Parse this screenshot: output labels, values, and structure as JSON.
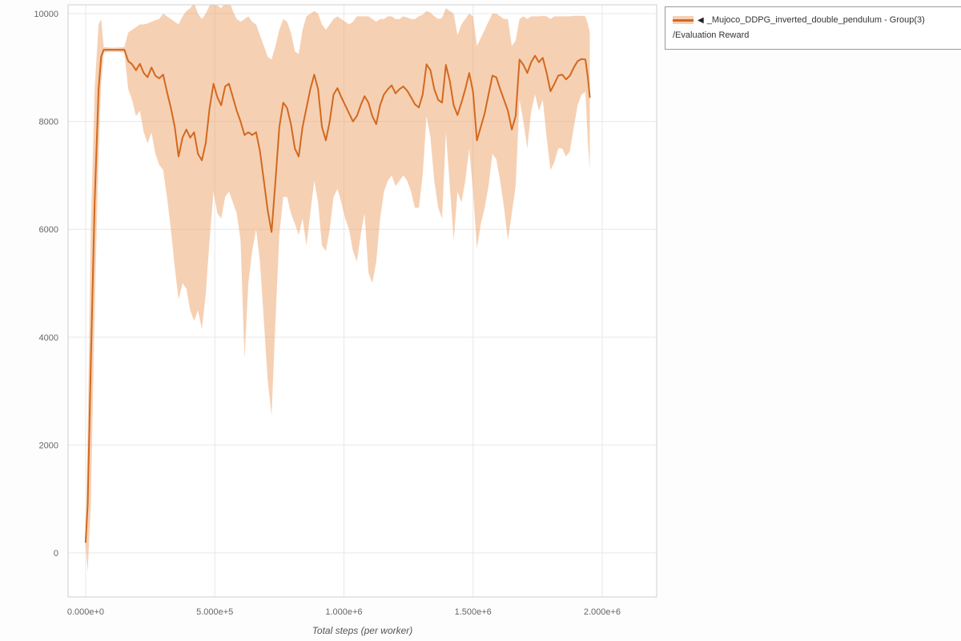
{
  "legend": {
    "collapse_icon": "◀",
    "series_label": "_Mujoco_DDPG_inverted_double_pendulum - Group(3)",
    "metric_label": "/Evaluation Reward"
  },
  "chart_data": {
    "type": "line",
    "title": "",
    "xlabel": "Total steps (per worker)",
    "ylabel": "",
    "grid": true,
    "legend_position": "top-right",
    "xlim": [
      -68000,
      2211000
    ],
    "ylim": [
      -817,
      10164
    ],
    "x_ticks": [
      {
        "v": 0,
        "label": "0.000e+0"
      },
      {
        "v": 500000,
        "label": "5.000e+5"
      },
      {
        "v": 1000000,
        "label": "1.000e+6"
      },
      {
        "v": 1500000,
        "label": "1.500e+6"
      },
      {
        "v": 2000000,
        "label": "2.000e+6"
      }
    ],
    "y_ticks": [
      {
        "v": 0,
        "label": "0"
      },
      {
        "v": 2000,
        "label": "2000"
      },
      {
        "v": 4000,
        "label": "4000"
      },
      {
        "v": 6000,
        "label": "6000"
      },
      {
        "v": 8000,
        "label": "8000"
      },
      {
        "v": 10000,
        "label": "10000"
      }
    ],
    "colors": {
      "line": "#d2691e",
      "band": "#eda268",
      "band_opacity": 0.5,
      "grid": "#e7e7e7",
      "plot_border": "#cfcfcf",
      "tick_text": "#666666"
    },
    "series": [
      {
        "name": "_Mujoco_DDPG_inverted_double_pendulum - Group(3)/Evaluation Reward",
        "x": [
          0,
          8000,
          20000,
          35000,
          50000,
          60000,
          70000,
          90000,
          120000,
          150000,
          165000,
          180000,
          195000,
          210000,
          225000,
          240000,
          255000,
          270000,
          285000,
          300000,
          315000,
          330000,
          345000,
          360000,
          375000,
          390000,
          405000,
          420000,
          435000,
          450000,
          465000,
          480000,
          495000,
          510000,
          525000,
          540000,
          555000,
          570000,
          585000,
          600000,
          615000,
          630000,
          645000,
          660000,
          675000,
          690000,
          705000,
          720000,
          735000,
          750000,
          765000,
          780000,
          795000,
          810000,
          825000,
          840000,
          855000,
          870000,
          885000,
          900000,
          915000,
          930000,
          945000,
          960000,
          975000,
          990000,
          1005000,
          1020000,
          1035000,
          1050000,
          1065000,
          1080000,
          1095000,
          1110000,
          1125000,
          1140000,
          1155000,
          1170000,
          1185000,
          1200000,
          1215000,
          1230000,
          1245000,
          1260000,
          1275000,
          1290000,
          1305000,
          1320000,
          1335000,
          1350000,
          1365000,
          1380000,
          1395000,
          1410000,
          1425000,
          1440000,
          1455000,
          1470000,
          1485000,
          1500000,
          1515000,
          1530000,
          1545000,
          1560000,
          1575000,
          1590000,
          1605000,
          1620000,
          1635000,
          1650000,
          1665000,
          1680000,
          1695000,
          1710000,
          1725000,
          1740000,
          1755000,
          1770000,
          1785000,
          1800000,
          1815000,
          1830000,
          1845000,
          1860000,
          1875000,
          1890000,
          1905000,
          1920000,
          1935000,
          1945000,
          1952000
        ],
        "mean": [
          200,
          900,
          3500,
          6500,
          8600,
          9200,
          9330,
          9330,
          9330,
          9330,
          9120,
          9060,
          8950,
          9070,
          8900,
          8820,
          9000,
          8850,
          8800,
          8870,
          8550,
          8250,
          7900,
          7350,
          7700,
          7850,
          7700,
          7800,
          7400,
          7280,
          7600,
          8250,
          8700,
          8450,
          8300,
          8650,
          8700,
          8450,
          8200,
          8000,
          7750,
          7800,
          7750,
          7800,
          7450,
          6900,
          6350,
          5950,
          6900,
          7900,
          8350,
          8250,
          7950,
          7500,
          7350,
          7900,
          8250,
          8600,
          8870,
          8600,
          7900,
          7650,
          8000,
          8500,
          8620,
          8450,
          8300,
          8150,
          8000,
          8100,
          8300,
          8470,
          8350,
          8100,
          7950,
          8300,
          8500,
          8600,
          8670,
          8520,
          8600,
          8650,
          8570,
          8450,
          8320,
          8260,
          8500,
          9060,
          8950,
          8600,
          8400,
          8350,
          9050,
          8750,
          8300,
          8120,
          8350,
          8600,
          8900,
          8550,
          7650,
          7900,
          8150,
          8500,
          8850,
          8820,
          8600,
          8400,
          8200,
          7850,
          8100,
          9150,
          9050,
          8900,
          9100,
          9220,
          9100,
          9180,
          8900,
          8560,
          8700,
          8850,
          8870,
          8780,
          8850,
          9000,
          9120,
          9160,
          9150,
          8800,
          8450
        ],
        "lo": [
          140,
          -350,
          900,
          4500,
          7400,
          8700,
          9280,
          9290,
          9290,
          9280,
          8600,
          8400,
          8100,
          8200,
          7800,
          7600,
          7800,
          7400,
          7200,
          7100,
          6600,
          6000,
          5300,
          4700,
          5000,
          4900,
          4500,
          4300,
          4500,
          4150,
          4800,
          5800,
          6700,
          6300,
          6200,
          6600,
          6700,
          6500,
          6300,
          5800,
          3600,
          5000,
          5600,
          6000,
          5400,
          4300,
          3200,
          2550,
          4300,
          5900,
          6600,
          6600,
          6300,
          6100,
          5900,
          6200,
          5700,
          6300,
          6900,
          6500,
          5700,
          5600,
          6000,
          6600,
          6750,
          6500,
          6200,
          6000,
          5600,
          5400,
          5900,
          6300,
          5200,
          5000,
          5400,
          6200,
          6700,
          6900,
          7000,
          6800,
          6900,
          7000,
          6900,
          6700,
          6400,
          6400,
          7000,
          8100,
          7700,
          6900,
          6400,
          6200,
          7800,
          6800,
          5800,
          6700,
          6500,
          6900,
          7500,
          6700,
          5650,
          6100,
          6400,
          6800,
          7400,
          7300,
          6900,
          6400,
          5800,
          6300,
          6800,
          8400,
          8000,
          7500,
          8200,
          8500,
          8200,
          8400,
          7700,
          7100,
          7250,
          7500,
          7500,
          7350,
          7450,
          7900,
          8300,
          8500,
          8550,
          7600,
          7100
        ],
        "hi": [
          260,
          2200,
          6000,
          8600,
          9800,
          9900,
          9380,
          9370,
          9370,
          9380,
          9650,
          9700,
          9750,
          9800,
          9800,
          9820,
          9850,
          9880,
          9900,
          10000,
          9950,
          9900,
          9850,
          9800,
          9950,
          10050,
          10100,
          10200,
          10000,
          9900,
          10000,
          10150,
          10200,
          10150,
          10100,
          10200,
          10250,
          10050,
          9900,
          9850,
          9900,
          9950,
          9850,
          9800,
          9600,
          9400,
          9200,
          9150,
          9400,
          9700,
          9900,
          9850,
          9650,
          9300,
          9250,
          9700,
          9950,
          10000,
          10050,
          10000,
          9800,
          9700,
          9800,
          9900,
          9950,
          9900,
          9850,
          9800,
          9850,
          9950,
          9950,
          9950,
          9950,
          9900,
          9850,
          9900,
          9900,
          9950,
          9950,
          9900,
          9900,
          9950,
          9930,
          9900,
          9900,
          9950,
          9980,
          10050,
          10020,
          9950,
          9900,
          9920,
          10100,
          10050,
          10000,
          9600,
          9800,
          9900,
          10000,
          9950,
          9400,
          9550,
          9700,
          9850,
          10000,
          10000,
          9950,
          9900,
          9900,
          9400,
          9500,
          9900,
          9950,
          9900,
          9950,
          9950,
          9950,
          9960,
          9950,
          9900,
          9950,
          9950,
          9950,
          9950,
          9950,
          9960,
          9960,
          9960,
          9950,
          9800,
          9650
        ]
      }
    ]
  }
}
